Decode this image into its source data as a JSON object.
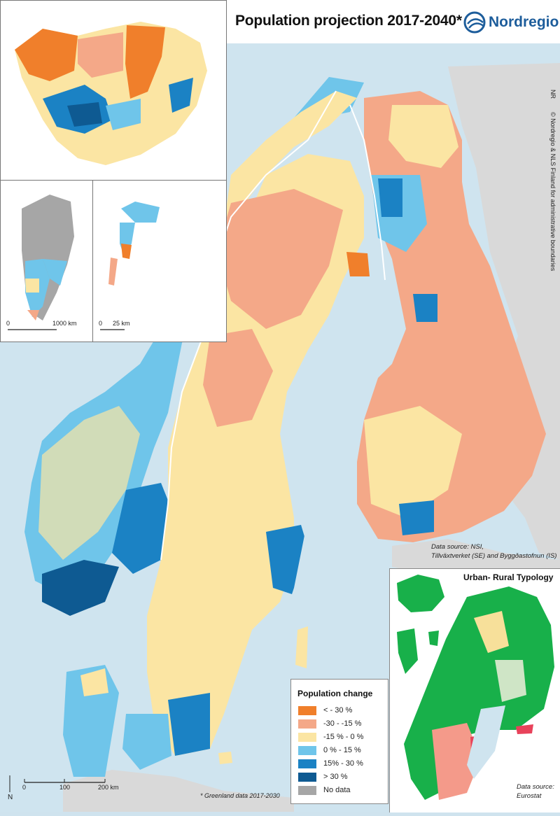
{
  "header": {
    "title": "Population projection 2017-2040*",
    "brand": "Nordregio"
  },
  "credits": {
    "code": "NR",
    "copyright": "© Nordregio & NLS Finland for administrative boundaries"
  },
  "sources": {
    "main_line1": "Data source: NSI,",
    "main_line2": "Tillväxtverket (SE) and Byggðastofnun (IS)",
    "typology_line1": "Data source:",
    "typology_line2": "Eurostat"
  },
  "scales": {
    "greenland": {
      "zero": "0",
      "end": "1000 km"
    },
    "svalbard": {
      "zero": "0",
      "end": "25 km"
    },
    "main": {
      "zero": "0",
      "mid": "100",
      "end": "200 km"
    }
  },
  "north_label": "N",
  "footnote": "* Greenland data 2017-2030",
  "legend": {
    "title": "Population change",
    "items": [
      {
        "label": "< - 30 %",
        "color": "#f07f2b"
      },
      {
        "label": "-30 - -15 %",
        "color": "#f4a888"
      },
      {
        "label": "-15 % - 0 %",
        "color": "#fbe5a3"
      },
      {
        "label": "0 % - 15 %",
        "color": "#6fc5ea"
      },
      {
        "label": "15% - 30 %",
        "color": "#1b82c4"
      },
      {
        "label": "> 30 %",
        "color": "#0e5a92"
      },
      {
        "label": "No data",
        "color": "#a6a6a6"
      }
    ]
  },
  "typology": {
    "title": "Urban- Rural Typology",
    "colors": {
      "rural": "#18b04a",
      "intermediate": "#f7e09a",
      "urban": "#f49a8a",
      "urban_dense": "#e8425a",
      "other": "#cfe5c6"
    }
  },
  "colors": {
    "sea": "#cfe4ef",
    "land_outside": "#d9d9d9",
    "border": "#ffffff"
  }
}
